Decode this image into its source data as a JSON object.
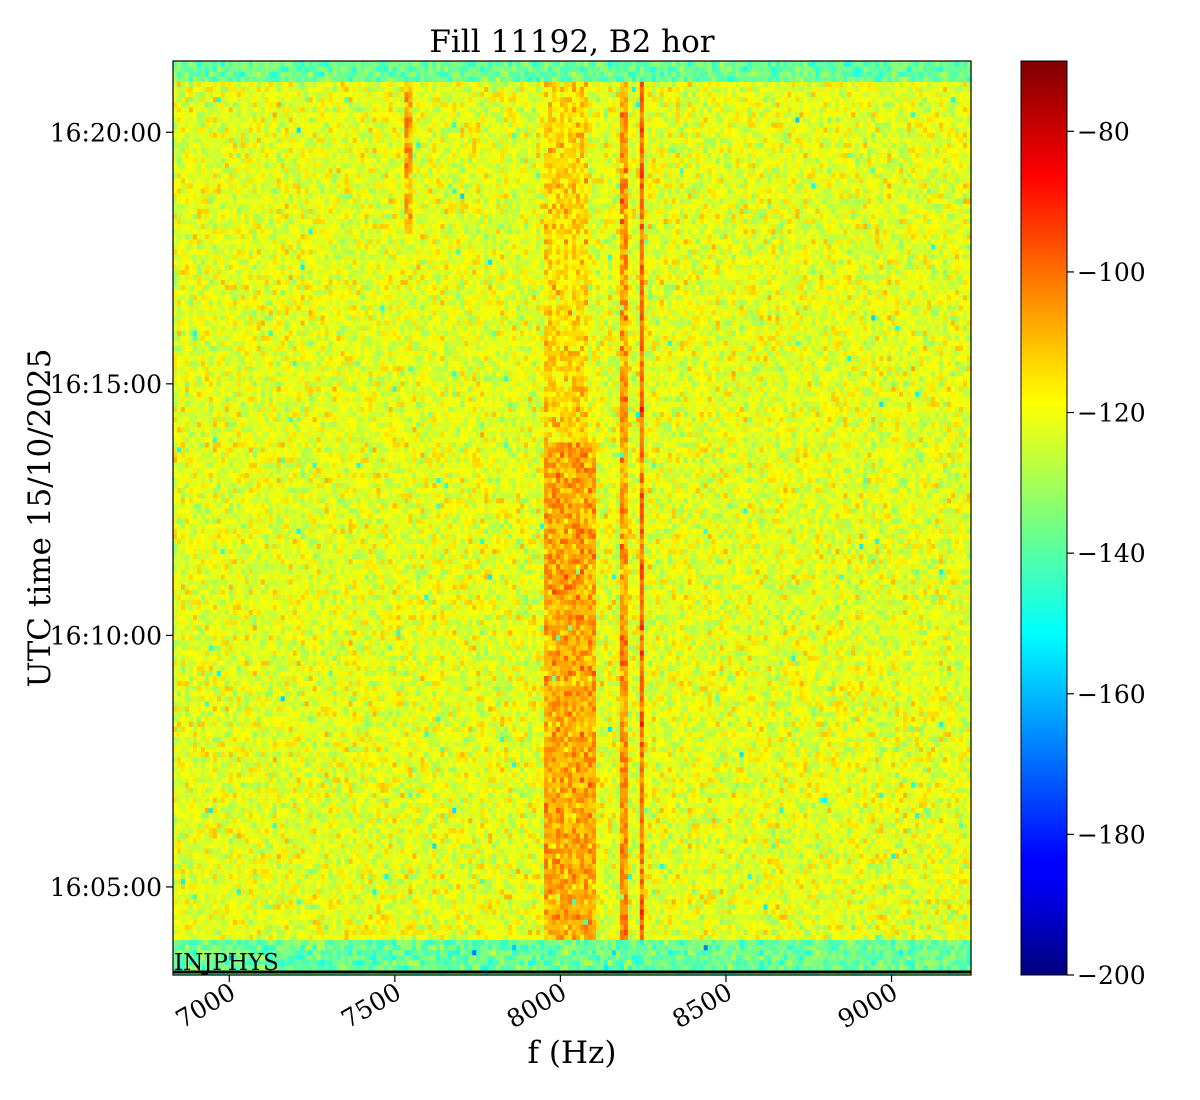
{
  "chart_data": {
    "type": "heatmap",
    "title": "Fill 11192, B2 hor",
    "xlabel": "f (Hz)",
    "ylabel": "UTC time 15/10/2025",
    "xlim": [
      6830,
      9240
    ],
    "ylim": [
      "16:03:15",
      "16:21:25"
    ],
    "x_ticks": [
      {
        "value": 7000,
        "label": "7000"
      },
      {
        "value": 7500,
        "label": "7500"
      },
      {
        "value": 8000,
        "label": "8000"
      },
      {
        "value": 8500,
        "label": "8500"
      },
      {
        "value": 9000,
        "label": "9000"
      }
    ],
    "y_ticks": [
      {
        "value": "16:05:00",
        "label": "16:05:00"
      },
      {
        "value": "16:10:00",
        "label": "16:10:00"
      },
      {
        "value": "16:15:00",
        "label": "16:15:00"
      },
      {
        "value": "16:20:00",
        "label": "16:20:00"
      }
    ],
    "colormap": "jet",
    "colorbar": {
      "range": [
        -200,
        -70
      ],
      "ticks": [
        {
          "value": -80,
          "label": "−80"
        },
        {
          "value": -100,
          "label": "−100"
        },
        {
          "value": -120,
          "label": "−120"
        },
        {
          "value": -140,
          "label": "−140"
        },
        {
          "value": -160,
          "label": "−160"
        },
        {
          "value": -180,
          "label": "−180"
        },
        {
          "value": -200,
          "label": "−200"
        }
      ]
    },
    "background_level": -122,
    "features": [
      {
        "kind": "line",
        "freq": 8245,
        "time_from": "16:03:55",
        "time_to": "16:21:00",
        "level": -100
      },
      {
        "kind": "line",
        "freq": 8195,
        "time_from": "16:03:55",
        "time_to": "16:21:00",
        "level": -106
      },
      {
        "kind": "band",
        "freq_from": 7950,
        "freq_to": 8110,
        "time_from": "16:03:55",
        "time_to": "16:13:50",
        "level": -108
      },
      {
        "kind": "band",
        "freq_from": 7950,
        "freq_to": 8080,
        "time_from": "16:13:50",
        "time_to": "16:21:00",
        "level": -114
      },
      {
        "kind": "line",
        "freq": 7540,
        "time_from": "16:18:00",
        "time_to": "16:21:00",
        "level": -108
      },
      {
        "kind": "gap",
        "time_from": "16:03:15",
        "time_to": "16:03:55",
        "level": -138
      },
      {
        "kind": "gap",
        "time_from": "16:21:00",
        "time_to": "16:21:25",
        "level": -138
      }
    ],
    "annotation": "INJPHYS",
    "grid": false
  }
}
